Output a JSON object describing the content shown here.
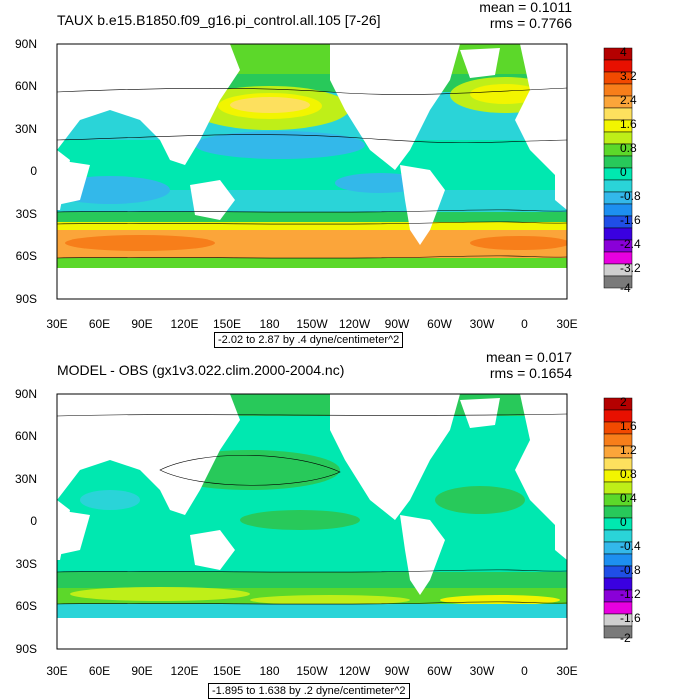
{
  "panels": [
    {
      "title": "TAUX b.e15.B1850.f09_g16.pi_control.all.105 [7-26]",
      "mean": "mean = 0.1011",
      "rms": "rms = 0.7766",
      "subtitle": "-2.02 to 2.87 by .4 dyne/centimeter^2",
      "colorbar_labels": [
        "4",
        "3.2",
        "2.4",
        "1.6",
        "0.8",
        "0",
        "-0.8",
        "-1.6",
        "-2.4",
        "-3.2",
        "-4"
      ]
    },
    {
      "title": "MODEL - OBS (gx1v3.022.clim.2000-2004.nc)",
      "mean": "mean = 0.017",
      "rms": "rms = 0.1654",
      "subtitle": "-1.895 to 1.638 by .2 dyne/centimeter^2",
      "colorbar_labels": [
        "2",
        "1.6",
        "1.2",
        "0.8",
        "0.4",
        "0",
        "-0.4",
        "-0.8",
        "-1.2",
        "-1.6",
        "-2"
      ]
    }
  ],
  "lat_labels": [
    "90N",
    "60N",
    "30N",
    "0",
    "30S",
    "60S",
    "90S"
  ],
  "lon_labels": [
    "30E",
    "60E",
    "90E",
    "120E",
    "150E",
    "180",
    "150W",
    "120W",
    "90W",
    "60W",
    "30W",
    "0",
    "30E"
  ],
  "colorbar_colors": [
    "#b40000",
    "#e81000",
    "#f24a00",
    "#f77e1a",
    "#fba53a",
    "#fde05e",
    "#f2f500",
    "#bfef18",
    "#5cd82a",
    "#28c95a",
    "#00e8b0",
    "#2ad4d8",
    "#33b8ea",
    "#1d8ff0",
    "#1f4ee6",
    "#3a00e0",
    "#8a00d8",
    "#e800e0",
    "#cfcfcf",
    "#7a7a7a"
  ]
}
